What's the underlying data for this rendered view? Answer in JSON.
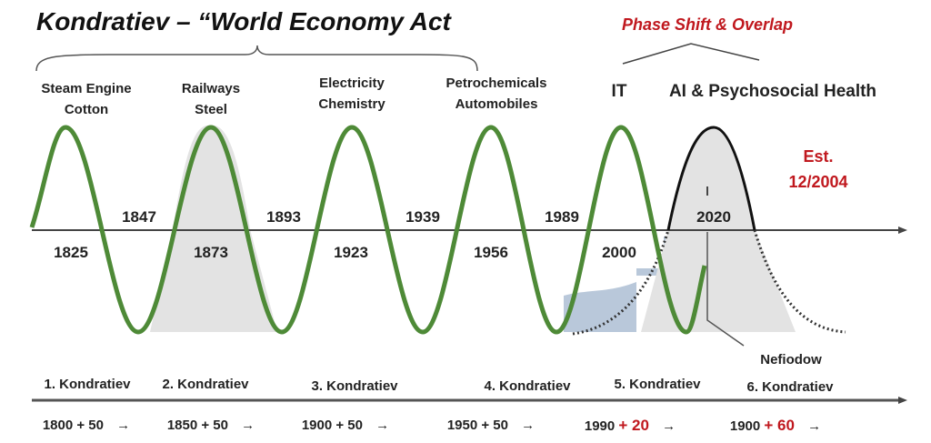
{
  "title": "Kondratiev – “World Economy Act",
  "phase_label": "Phase Shift & Overlap",
  "estimate": {
    "line1": "Est.",
    "line2": "12/2004"
  },
  "technologies": [
    {
      "line1": "Steam Engine",
      "line2": "Cotton"
    },
    {
      "line1": "Railways",
      "line2": "Steel"
    },
    {
      "line1": "Electricity",
      "line2": "Chemistry"
    },
    {
      "line1": "Petrochemicals",
      "line2": "Automobiles"
    },
    {
      "line1": "IT"
    },
    {
      "line1": "AI & Psychosocial Health"
    }
  ],
  "years_above": [
    "1847",
    "1893",
    "1939",
    "1989",
    "2020"
  ],
  "years_below": [
    "1825",
    "1873",
    "1923",
    "1956",
    "2000"
  ],
  "nefiodow": "Nefiodow",
  "waves": [
    "1. Kondratiev",
    "2. Kondratiev",
    "3. Kondratiev",
    "4. Kondratiev",
    "5. Kondratiev",
    "6. Kondratiev"
  ],
  "spans": [
    {
      "base": "1800",
      "plus": "+ 50",
      "arrow": "→",
      "red": false
    },
    {
      "base": "1850",
      "plus": "+ 50",
      "arrow": "→",
      "red": false
    },
    {
      "base": "1900",
      "plus": "+ 50",
      "arrow": "→",
      "red": false
    },
    {
      "base": "1950",
      "plus": "+ 50",
      "arrow": "→",
      "red": false
    },
    {
      "base": "1990",
      "plus": "+ 20",
      "arrow": "→",
      "red": true
    },
    {
      "base": "1900",
      "plus": "+ 60",
      "arrow": "→",
      "red": true
    }
  ],
  "colors": {
    "wave": "#4e8a37",
    "accent": "#c0181e",
    "shade": "#e3e3e3",
    "blue": "#b9c8da"
  }
}
